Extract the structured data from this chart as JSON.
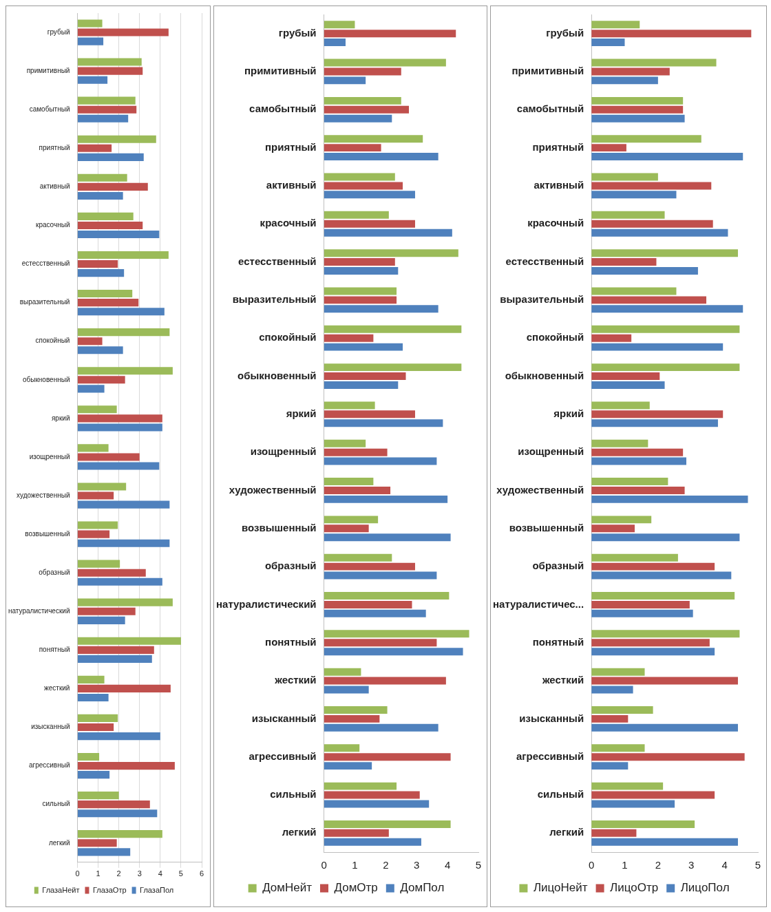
{
  "chart_data": [
    {
      "type": "bar",
      "orientation": "horizontal",
      "categories": [
        "грубый",
        "примитивный",
        "самобытный",
        "приятный",
        "активный",
        "красочный",
        "естесственный",
        "выразительный",
        "спокойный",
        "обыкновенный",
        "яркий",
        "изощренный",
        "художественный",
        "возвышенный",
        "образный",
        "натуралистический",
        "понятный",
        "жесткий",
        "изысканный",
        "агрессивный",
        "сильный",
        "легкий"
      ],
      "xlim": [
        0,
        6
      ],
      "xticks": [
        0,
        1,
        2,
        3,
        4,
        5,
        6
      ],
      "grid": "x",
      "legend": "bottom",
      "series": [
        {
          "name": "ГлазаНейт",
          "color": "#9bbb59",
          "values": [
            1.2,
            3.1,
            2.8,
            3.8,
            2.4,
            2.7,
            4.4,
            2.65,
            4.45,
            4.6,
            1.9,
            1.5,
            2.35,
            1.95,
            2.05,
            4.6,
            5.0,
            1.3,
            1.95,
            1.05,
            2.0,
            4.1
          ]
        },
        {
          "name": "ГлазаОтр",
          "color": "#c0504d",
          "values": [
            4.4,
            3.15,
            2.85,
            1.65,
            3.4,
            3.15,
            1.95,
            2.95,
            1.2,
            2.3,
            4.1,
            3.0,
            1.75,
            1.55,
            3.3,
            2.8,
            3.7,
            4.5,
            1.75,
            4.7,
            3.5,
            1.9
          ]
        },
        {
          "name": "ГлазаПол",
          "color": "#4f81bd",
          "values": [
            1.25,
            1.45,
            2.45,
            3.2,
            2.2,
            3.95,
            2.25,
            4.2,
            2.2,
            1.3,
            4.1,
            3.95,
            4.45,
            4.45,
            4.1,
            2.3,
            3.6,
            1.5,
            4.0,
            1.55,
            3.85,
            2.55
          ]
        }
      ]
    },
    {
      "type": "bar",
      "orientation": "horizontal",
      "categories": [
        "грубый",
        "примитивный",
        "самобытный",
        "приятный",
        "активный",
        "красочный",
        "естесственный",
        "выразительный",
        "спокойный",
        "обыкновенный",
        "яркий",
        "изощренный",
        "художественный",
        "возвышенный",
        "образный",
        "натуралистический",
        "понятный",
        "жесткий",
        "изысканный",
        "агрессивный",
        "сильный",
        "легкий"
      ],
      "xlim": [
        0,
        5
      ],
      "xticks": [
        0,
        1,
        2,
        3,
        4,
        5
      ],
      "legend": "bottom",
      "series": [
        {
          "name": "ДомНейт",
          "color": "#9bbb59",
          "values": [
            1.0,
            3.95,
            2.5,
            3.2,
            2.3,
            2.1,
            4.35,
            2.35,
            4.45,
            4.45,
            1.65,
            1.35,
            1.6,
            1.75,
            2.2,
            4.05,
            4.7,
            1.2,
            2.05,
            1.15,
            2.35,
            4.1
          ]
        },
        {
          "name": "ДомОтр",
          "color": "#c0504d",
          "values": [
            4.27,
            2.5,
            2.75,
            1.85,
            2.55,
            2.95,
            2.3,
            2.35,
            1.6,
            2.65,
            2.95,
            2.05,
            2.15,
            1.45,
            2.95,
            2.85,
            3.65,
            3.95,
            1.8,
            4.1,
            3.1,
            2.1
          ]
        },
        {
          "name": "ДомПол",
          "color": "#4f81bd",
          "values": [
            0.7,
            1.35,
            2.2,
            3.7,
            2.95,
            4.15,
            2.4,
            3.7,
            2.55,
            2.4,
            3.85,
            3.65,
            4.0,
            4.1,
            3.65,
            3.3,
            4.5,
            1.45,
            3.7,
            1.55,
            3.4,
            3.15
          ]
        }
      ]
    },
    {
      "type": "bar",
      "orientation": "horizontal",
      "categories": [
        "грубый",
        "примитивный",
        "самобытный",
        "приятный",
        "активный",
        "красочный",
        "естесственный",
        "выразительный",
        "спокойный",
        "обыкновенный",
        "яркий",
        "изощренный",
        "художественный",
        "возвышенный",
        "образный",
        "натуралистичес...",
        "понятный",
        "жесткий",
        "изысканный",
        "агрессивный",
        "сильный",
        "легкий"
      ],
      "xlim": [
        0,
        5
      ],
      "xticks": [
        0,
        1,
        2,
        3,
        4,
        5
      ],
      "legend": "bottom",
      "series": [
        {
          "name": "ЛицоНейт",
          "color": "#9bbb59",
          "values": [
            1.45,
            3.75,
            2.75,
            3.3,
            2.0,
            2.2,
            4.4,
            2.55,
            4.45,
            4.45,
            1.75,
            1.7,
            2.3,
            1.8,
            2.6,
            4.3,
            4.45,
            1.6,
            1.85,
            1.6,
            2.15,
            3.1
          ]
        },
        {
          "name": "ЛицоОтр",
          "color": "#c0504d",
          "values": [
            4.8,
            2.35,
            2.75,
            1.05,
            3.6,
            3.65,
            1.95,
            3.45,
            1.2,
            2.05,
            3.95,
            2.75,
            2.8,
            1.3,
            3.7,
            2.95,
            3.55,
            4.4,
            1.1,
            4.6,
            3.7,
            1.35
          ]
        },
        {
          "name": "ЛицоПол",
          "color": "#4f81bd",
          "values": [
            1.0,
            2.0,
            2.8,
            4.55,
            2.55,
            4.1,
            3.2,
            4.55,
            3.95,
            2.2,
            3.8,
            2.85,
            4.7,
            4.45,
            4.2,
            3.05,
            3.7,
            1.25,
            4.4,
            1.1,
            2.5,
            4.4
          ]
        }
      ]
    }
  ]
}
